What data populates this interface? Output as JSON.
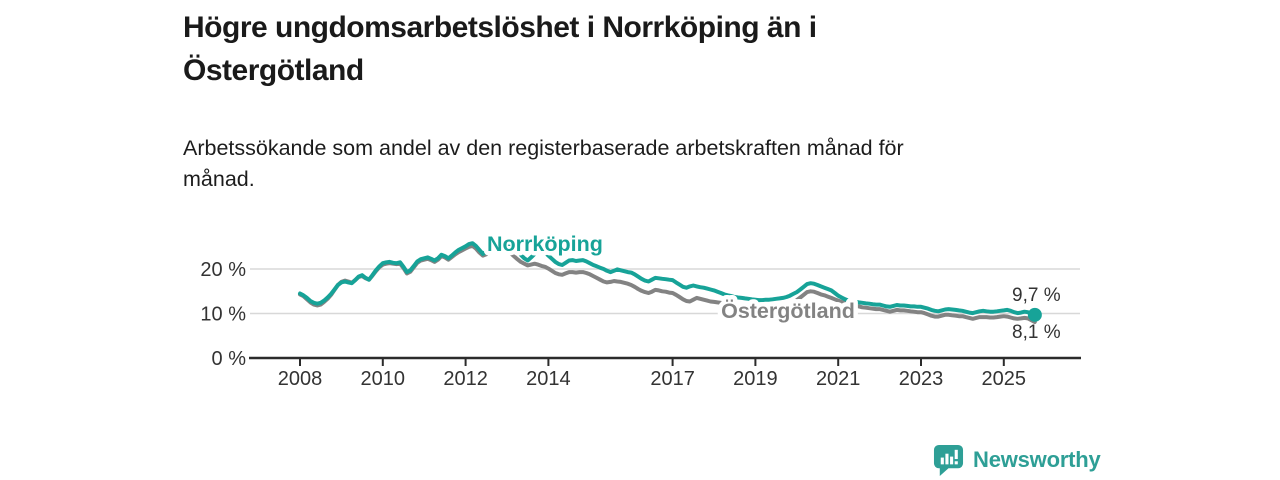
{
  "header": {
    "title": "Högre ungdomsarbetslöshet i Norrköping än i Östergötland",
    "title_line1": "Högre ungdomsarbetslöshet i Norrköping än i",
    "title_line2": "Östergötland",
    "subtitle": "Arbetssökande som andel av den registerbaserade arbetskraften månad för månad.",
    "subtitle_line1": "Arbetssökande som andel av den registerbaserade arbetskraften månad för",
    "subtitle_line2": "månad."
  },
  "footer": {
    "brand": "Newsworthy",
    "brand_color": "#2e9f96",
    "logo_icon": "newsworthy-chart-bubble-icon"
  },
  "chart_data": {
    "type": "line",
    "title": "Högre ungdomsarbetslöshet i Norrköping än i Östergötland",
    "subtitle": "Arbetssökande som andel av den registerbaserade arbetskraften månad för månad.",
    "unit": "%",
    "x_interval": "monthly",
    "x_start": "2008-01",
    "x_end": "2025-10",
    "grid": "horizontal",
    "legend": "inline-labels",
    "ylim": [
      0,
      31
    ],
    "axis_color": "#2b2b2b",
    "grid_color": "#d8d8d8",
    "label_color": "#333333",
    "x_ticks": [
      {
        "year": 2008,
        "label": "2008"
      },
      {
        "year": 2010,
        "label": "2010"
      },
      {
        "year": 2012,
        "label": "2012"
      },
      {
        "year": 2014,
        "label": "2014"
      },
      {
        "year": 2017,
        "label": "2017"
      },
      {
        "year": 2019,
        "label": "2019"
      },
      {
        "year": 2021,
        "label": "2021"
      },
      {
        "year": 2023,
        "label": "2023"
      },
      {
        "year": 2025,
        "label": "2025"
      }
    ],
    "y_ticks": [
      {
        "value": 0,
        "label": "0 %"
      },
      {
        "value": 10,
        "label": "10 %"
      },
      {
        "value": 20,
        "label": "20 %"
      }
    ],
    "series": [
      {
        "name": "Norrköping",
        "color": "#17a398",
        "end_value": 9.7,
        "end_label": "9,7 %",
        "end_dot": true,
        "values": [
          14.5,
          14.1,
          13.5,
          12.8,
          12.4,
          12.2,
          12.4,
          12.9,
          13.6,
          14.4,
          15.4,
          16.4,
          17.0,
          17.2,
          17.0,
          16.8,
          17.5,
          18.3,
          18.6,
          18.0,
          17.6,
          18.6,
          19.7,
          20.6,
          21.3,
          21.5,
          21.6,
          21.4,
          21.3,
          21.5,
          20.5,
          19.3,
          19.7,
          20.7,
          21.7,
          22.2,
          22.4,
          22.6,
          22.3,
          21.9,
          22.4,
          23.2,
          22.9,
          22.4,
          23.0,
          23.7,
          24.3,
          24.7,
          25.1,
          25.6,
          25.8,
          25.2,
          24.3,
          23.4,
          23.9,
          24.6,
          25.0,
          25.3,
          25.5,
          25.7,
          25.8,
          25.3,
          24.7,
          24.0,
          23.2,
          22.4,
          21.9,
          22.6,
          23.4,
          24.0,
          24.2,
          23.7,
          23.0,
          22.3,
          21.6,
          21.1,
          20.9,
          21.4,
          21.9,
          22.0,
          21.8,
          21.9,
          22.0,
          21.7,
          21.3,
          20.9,
          20.6,
          20.3,
          20.0,
          19.6,
          19.3,
          19.6,
          19.9,
          19.7,
          19.5,
          19.3,
          19.2,
          18.8,
          18.3,
          17.8,
          17.4,
          17.2,
          17.6,
          18.0,
          17.9,
          17.8,
          17.7,
          17.6,
          17.5,
          17.0,
          16.5,
          16.0,
          15.8,
          16.1,
          16.3,
          16.1,
          15.9,
          15.8,
          15.6,
          15.4,
          15.2,
          14.9,
          14.6,
          14.3,
          14.1,
          13.9,
          13.7,
          13.6,
          13.5,
          13.4,
          13.3,
          13.2,
          13.1,
          13.0,
          13.0,
          13.1,
          13.1,
          13.2,
          13.3,
          13.4,
          13.5,
          13.7,
          14.0,
          14.4,
          14.8,
          15.4,
          16.0,
          16.6,
          16.8,
          16.7,
          16.4,
          16.1,
          15.8,
          15.5,
          15.2,
          14.6,
          14.0,
          13.6,
          13.2,
          12.9,
          12.7,
          12.6,
          12.5,
          12.4,
          12.3,
          12.2,
          12.1,
          12.0,
          12.0,
          11.8,
          11.6,
          11.5,
          11.7,
          11.9,
          11.8,
          11.8,
          11.7,
          11.6,
          11.6,
          11.5,
          11.5,
          11.3,
          11.1,
          10.8,
          10.6,
          10.5,
          10.7,
          10.9,
          11.0,
          10.9,
          10.8,
          10.7,
          10.6,
          10.4,
          10.2,
          10.1,
          10.3,
          10.5,
          10.6,
          10.5,
          10.4,
          10.4,
          10.5,
          10.6,
          10.7,
          10.8,
          10.6,
          10.3,
          10.1,
          10.2,
          10.4,
          10.3,
          10.0,
          9.7
        ]
      },
      {
        "name": "Östergötland",
        "color": "#838383",
        "end_value": 8.1,
        "end_label": "8,1 %",
        "end_dot": false,
        "values": [
          14.3,
          13.9,
          13.2,
          12.5,
          12.0,
          11.8,
          12.0,
          12.6,
          13.3,
          14.2,
          15.3,
          16.4,
          17.1,
          17.4,
          17.2,
          16.9,
          17.5,
          18.2,
          18.4,
          17.9,
          17.6,
          18.5,
          19.5,
          20.4,
          21.0,
          21.2,
          21.3,
          21.2,
          21.1,
          21.2,
          20.2,
          19.0,
          19.4,
          20.4,
          21.4,
          21.9,
          22.1,
          22.3,
          22.0,
          21.6,
          22.1,
          22.9,
          22.6,
          22.1,
          22.7,
          23.3,
          23.8,
          24.2,
          24.6,
          25.0,
          25.2,
          24.6,
          23.7,
          23.0,
          23.3,
          23.8,
          24.0,
          24.1,
          24.2,
          24.2,
          24.1,
          23.6,
          22.9,
          22.2,
          21.6,
          21.2,
          20.8,
          21.0,
          21.2,
          21.0,
          20.7,
          20.5,
          20.1,
          19.6,
          19.1,
          18.8,
          18.7,
          19.0,
          19.3,
          19.3,
          19.2,
          19.3,
          19.3,
          19.1,
          18.8,
          18.4,
          18.0,
          17.6,
          17.2,
          17.0,
          17.1,
          17.3,
          17.2,
          17.1,
          16.9,
          16.7,
          16.4,
          16.0,
          15.5,
          15.1,
          14.8,
          14.6,
          14.9,
          15.3,
          15.2,
          15.0,
          14.9,
          14.7,
          14.6,
          14.2,
          13.7,
          13.2,
          12.8,
          12.7,
          13.1,
          13.5,
          13.3,
          13.1,
          12.9,
          12.7,
          12.6,
          12.5,
          12.4,
          12.3,
          12.1,
          12.0,
          11.9,
          11.8,
          11.6,
          11.5,
          11.4,
          11.3,
          11.2,
          11.2,
          11.1,
          11.2,
          11.3,
          11.4,
          11.5,
          11.6,
          11.7,
          11.9,
          12.1,
          12.4,
          13.0,
          13.6,
          14.2,
          14.8,
          15.0,
          14.9,
          14.6,
          14.3,
          14.1,
          13.8,
          13.5,
          13.2,
          12.9,
          12.6,
          12.3,
          12.1,
          11.9,
          11.8,
          11.6,
          11.4,
          11.3,
          11.2,
          11.1,
          11.0,
          11.0,
          10.8,
          10.6,
          10.4,
          10.6,
          10.8,
          10.7,
          10.7,
          10.6,
          10.5,
          10.4,
          10.3,
          10.3,
          10.1,
          9.8,
          9.5,
          9.3,
          9.3,
          9.5,
          9.7,
          9.7,
          9.6,
          9.5,
          9.4,
          9.4,
          9.2,
          9.0,
          8.8,
          9.0,
          9.2,
          9.2,
          9.2,
          9.1,
          9.1,
          9.2,
          9.3,
          9.4,
          9.3,
          9.1,
          8.9,
          8.8,
          8.9,
          9.0,
          8.9,
          8.5,
          8.1
        ]
      }
    ]
  }
}
